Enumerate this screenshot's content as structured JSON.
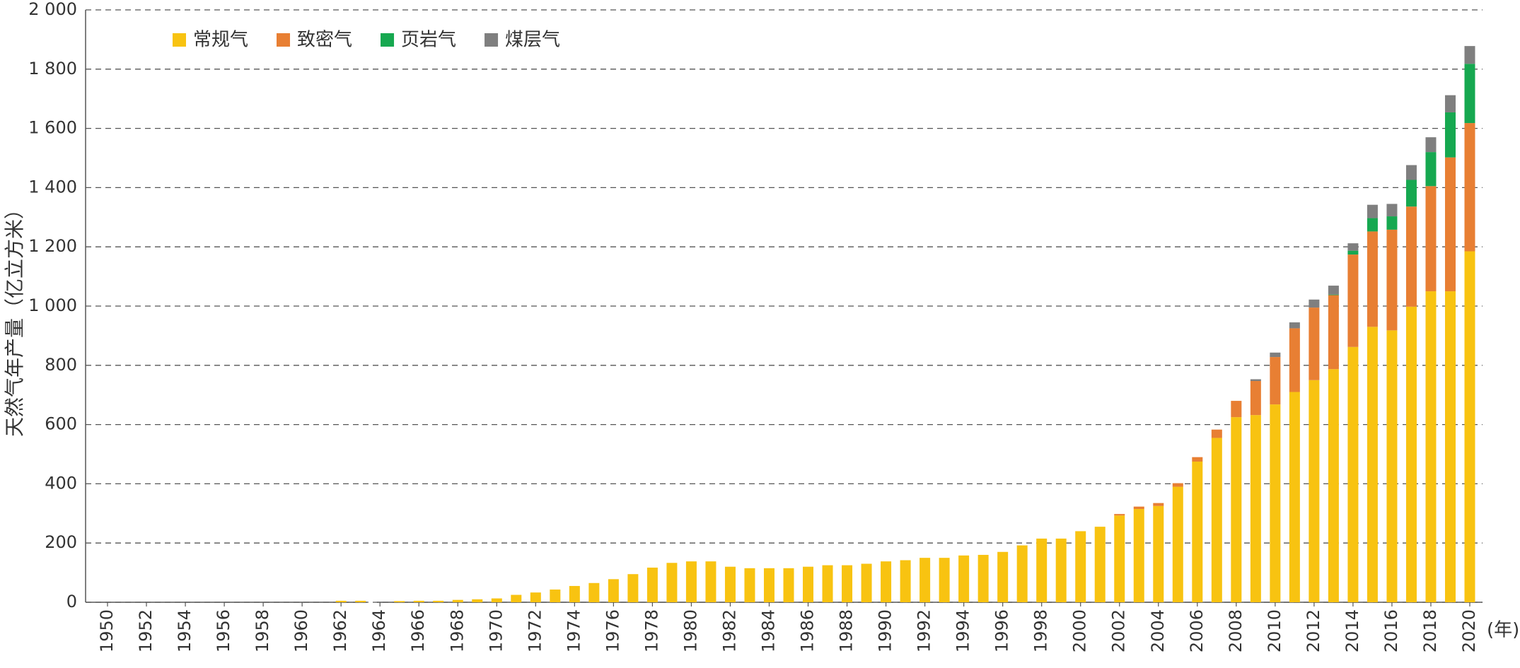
{
  "chart_data": {
    "type": "stacked_bar",
    "y_label": "天然气年产量（亿立方米）",
    "x_label": "(年)",
    "categories": [
      "1950",
      null,
      "1952",
      null,
      "1954",
      null,
      "1956",
      null,
      "1958",
      null,
      "1960",
      null,
      "1962",
      null,
      "1964",
      null,
      "1966",
      null,
      "1968",
      null,
      "1970",
      null,
      "1972",
      null,
      "1974",
      null,
      "1976",
      null,
      "1978",
      null,
      "1980",
      null,
      "1982",
      null,
      "1984",
      null,
      "1986",
      null,
      "1988",
      null,
      "1990",
      null,
      "1992",
      null,
      "1994",
      null,
      "1996",
      null,
      "1998",
      null,
      "2000",
      null,
      "2002",
      null,
      "2004",
      null,
      "2006",
      null,
      "2008",
      null,
      "2010",
      null,
      "2012",
      null,
      "2014",
      null,
      "2016",
      null,
      "2018",
      null,
      "2020"
    ],
    "series": [
      {
        "name": "常规气",
        "color": "#f8c311",
        "values": [
          0,
          0,
          0,
          0,
          0,
          0,
          0,
          0,
          0,
          0,
          0,
          0,
          5,
          5,
          0,
          4,
          5,
          5,
          8,
          10,
          13,
          25,
          33,
          43,
          55,
          65,
          78,
          95,
          117,
          133,
          138,
          138,
          120,
          115,
          115,
          115,
          120,
          125,
          125,
          130,
          138,
          142,
          150,
          150,
          158,
          160,
          170,
          192,
          215,
          215,
          240,
          255,
          293,
          315,
          325,
          390,
          475,
          555,
          625,
          632,
          668,
          710,
          750,
          787,
          862,
          930,
          918,
          998,
          1050,
          1050,
          1185
        ]
      },
      {
        "name": "致密气",
        "color": "#e87f33",
        "values": [
          0,
          0,
          0,
          0,
          0,
          0,
          0,
          0,
          0,
          0,
          0,
          0,
          0,
          0,
          0,
          0,
          0,
          0,
          0,
          0,
          0,
          0,
          0,
          0,
          0,
          0,
          0,
          0,
          0,
          0,
          0,
          0,
          0,
          0,
          0,
          0,
          0,
          0,
          0,
          0,
          0,
          0,
          0,
          0,
          0,
          0,
          0,
          0,
          0,
          0,
          0,
          0,
          5,
          8,
          10,
          12,
          15,
          28,
          55,
          115,
          160,
          215,
          245,
          250,
          312,
          322,
          340,
          338,
          355,
          452,
          433
        ]
      },
      {
        "name": "页岩气",
        "color": "#16a850",
        "values": [
          0,
          0,
          0,
          0,
          0,
          0,
          0,
          0,
          0,
          0,
          0,
          0,
          0,
          0,
          0,
          0,
          0,
          0,
          0,
          0,
          0,
          0,
          0,
          0,
          0,
          0,
          0,
          0,
          0,
          0,
          0,
          0,
          0,
          0,
          0,
          0,
          0,
          0,
          0,
          0,
          0,
          0,
          0,
          0,
          0,
          0,
          0,
          0,
          0,
          0,
          0,
          0,
          0,
          0,
          0,
          0,
          0,
          0,
          0,
          0,
          0,
          0,
          0,
          2,
          13,
          45,
          45,
          90,
          115,
          152,
          200
        ]
      },
      {
        "name": "煤层气",
        "color": "#7f7f7f",
        "values": [
          0,
          0,
          0,
          0,
          0,
          0,
          0,
          0,
          0,
          0,
          0,
          0,
          0,
          0,
          0,
          0,
          0,
          0,
          0,
          0,
          0,
          0,
          0,
          0,
          0,
          0,
          0,
          0,
          0,
          0,
          0,
          0,
          0,
          0,
          0,
          0,
          0,
          0,
          0,
          0,
          0,
          0,
          0,
          0,
          0,
          0,
          0,
          0,
          0,
          0,
          0,
          0,
          0,
          0,
          0,
          0,
          0,
          0,
          0,
          6,
          15,
          20,
          27,
          30,
          25,
          45,
          42,
          50,
          50,
          58,
          60
        ]
      }
    ],
    "ylim": [
      0,
      2000
    ],
    "yticks": [
      0,
      200,
      400,
      600,
      800,
      {
        "value": 1000,
        "label": "1 000"
      },
      {
        "value": 1200,
        "label": "1 200"
      },
      {
        "value": 1400,
        "label": "1 400"
      },
      {
        "value": 1600,
        "label": "1 600"
      },
      {
        "value": 1800,
        "label": "1 800"
      },
      {
        "value": 2000,
        "label": "2 000"
      }
    ],
    "grid": true,
    "legend": "top-left"
  }
}
